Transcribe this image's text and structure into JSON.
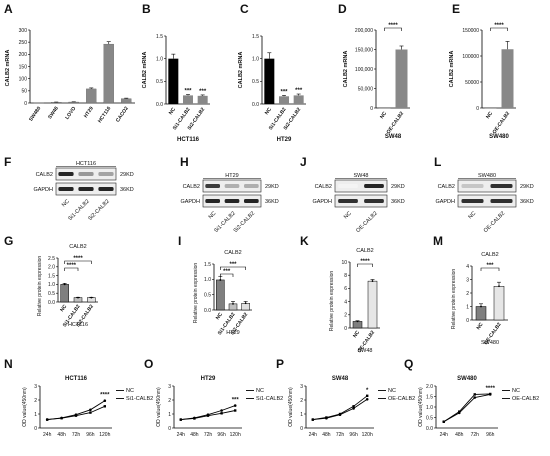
{
  "panels": {
    "A": {
      "letter": "A",
      "ylabel": "CALB2 mRNA",
      "yticks": [
        "0",
        "50",
        "100",
        "150",
        "200",
        "250",
        "300"
      ],
      "ymax": 300,
      "categories": [
        "SW480",
        "SW48",
        "LOVO",
        "HT29",
        "HCT116",
        "CACO2"
      ],
      "values": [
        1,
        3,
        4,
        58,
        242,
        18
      ],
      "errors": [
        0,
        1,
        1,
        4,
        10,
        2
      ],
      "bar_color": "#888888"
    },
    "B": {
      "letter": "B",
      "ylabel": "CALB2 mRNA",
      "yticks": [
        "0.0",
        "0.5",
        "1.0",
        "1.5"
      ],
      "ymax": 1.5,
      "categories": [
        "NC",
        "Si1-CALB2",
        "Si2-CALB2"
      ],
      "values": [
        1.0,
        0.19,
        0.18
      ],
      "errors": [
        0.1,
        0.02,
        0.02
      ],
      "stars": [
        "",
        "***",
        "***"
      ],
      "cell_line": "HCT116",
      "colors": [
        "#000000",
        "#888888",
        "#888888"
      ]
    },
    "C": {
      "letter": "C",
      "ylabel": "CALB2 mRNA",
      "yticks": [
        "0.0",
        "0.5",
        "1.0",
        "1.5"
      ],
      "ymax": 1.5,
      "categories": [
        "NC",
        "Si1-CALB2",
        "Si2-CALB2"
      ],
      "values": [
        1.0,
        0.17,
        0.19
      ],
      "errors": [
        0.13,
        0.02,
        0.03
      ],
      "stars": [
        "",
        "***",
        "***"
      ],
      "cell_line": "HT29",
      "colors": [
        "#000000",
        "#888888",
        "#888888"
      ]
    },
    "D": {
      "letter": "D",
      "ylabel": "CALB2 mRNA",
      "yticks": [
        "0",
        "50,000",
        "100,000",
        "150,000",
        "200,000"
      ],
      "ymax": 200000,
      "categories": [
        "NC",
        "OE-CALB2"
      ],
      "values": [
        1,
        150000
      ],
      "errors": [
        0,
        9000
      ],
      "star": "****",
      "cell_line": "SW48"
    },
    "E": {
      "letter": "E",
      "ylabel": "CALB2 mRNA",
      "yticks": [
        "0",
        "50000",
        "100000",
        "150000"
      ],
      "ymax": 150000,
      "categories": [
        "NC",
        "OE-CALB2"
      ],
      "values": [
        1,
        113000
      ],
      "errors": [
        0,
        15000
      ],
      "star": "****",
      "cell_line": "SW480"
    },
    "F": {
      "letter": "F",
      "title": "HCT116",
      "rows": [
        "CALB2",
        "GAPDH"
      ],
      "sizes": [
        "29KD",
        "36KD"
      ],
      "lanes": [
        "NC",
        "Si1-CALB2",
        "Si2-CALB2"
      ]
    },
    "H": {
      "letter": "H",
      "title": "HT29",
      "rows": [
        "CALB2",
        "GAPDH"
      ],
      "sizes": [
        "29KD",
        "36KD"
      ],
      "lanes": [
        "NC",
        "Si1-CALB2",
        "Si2-CALB2"
      ]
    },
    "J": {
      "letter": "J",
      "title": "SW48",
      "rows": [
        "CALB2",
        "GAPDH"
      ],
      "sizes": [
        "29KD",
        "36KD"
      ],
      "lanes": [
        "NC",
        "OE-CALB2"
      ]
    },
    "L": {
      "letter": "L",
      "title": "SW480",
      "rows": [
        "CALB2",
        "GAPDH"
      ],
      "sizes": [
        "29KD",
        "36KD"
      ],
      "lanes": [
        "NC",
        "OE-CALB2"
      ]
    },
    "G": {
      "letter": "G",
      "title": "CALB2",
      "ylabel": "Relative protein expression",
      "yticks": [
        "0.0",
        "0.5",
        "1.0",
        "1.5",
        "2.0",
        "2.5"
      ],
      "ymax": 2.5,
      "categories": [
        "NC",
        "Si1-CALB2",
        "Si2-CALB2"
      ],
      "values": [
        1.0,
        0.25,
        0.25
      ],
      "errors": [
        0.06,
        0.02,
        0.02
      ],
      "cell_line": "HCT116",
      "stars": [
        "****",
        "****",
        "****"
      ],
      "colors": [
        "#7f7f7f",
        "#bfbfbf",
        "#e0e0e0"
      ]
    },
    "I": {
      "letter": "I",
      "title": "CALB2",
      "ylabel": "Relative protein expression",
      "yticks": [
        "0.0",
        "0.5",
        "1.0",
        "1.5"
      ],
      "ymax": 1.5,
      "categories": [
        "NC",
        "Si1-CALB2",
        "Si2-CALB2"
      ],
      "values": [
        0.98,
        0.2,
        0.22
      ],
      "errors": [
        0.12,
        0.08,
        0.06
      ],
      "cell_line": "HT29",
      "stars": [
        "***",
        "***",
        "***"
      ],
      "colors": [
        "#7f7f7f",
        "#bfbfbf",
        "#e0e0e0"
      ]
    },
    "K": {
      "letter": "K",
      "title": "CALB2",
      "ylabel": "Relative protein expression",
      "yticks": [
        "0",
        "2",
        "4",
        "6",
        "8",
        "10"
      ],
      "ymax": 10,
      "categories": [
        "NC",
        "OE-CALB2"
      ],
      "values": [
        1.0,
        7.1
      ],
      "errors": [
        0.1,
        0.25
      ],
      "cell_line": "SW48",
      "star": "****",
      "colors": [
        "#7f7f7f",
        "#e6e6e6"
      ]
    },
    "M": {
      "letter": "M",
      "title": "CALB2",
      "ylabel": "Relative protein expression",
      "yticks": [
        "0",
        "1",
        "2",
        "3",
        "4"
      ],
      "ymax": 4,
      "categories": [
        "NC",
        "OE-CALB2"
      ],
      "values": [
        1.0,
        2.5
      ],
      "errors": [
        0.2,
        0.3
      ],
      "cell_line": "SW480",
      "star": "***",
      "colors": [
        "#7f7f7f",
        "#e6e6e6"
      ]
    },
    "N": {
      "letter": "N",
      "title": "HCT116",
      "ylabel": "OD value(450nm)",
      "yticks": [
        "0",
        "1",
        "2",
        "3"
      ],
      "ymax": 3,
      "x": [
        "24h",
        "48h",
        "72h",
        "96h",
        "120h"
      ],
      "series": [
        {
          "name": "NC",
          "values": [
            0.6,
            0.72,
            0.95,
            1.3,
            1.95
          ]
        },
        {
          "name": "Si1-CALB2",
          "values": [
            0.6,
            0.7,
            0.88,
            1.1,
            1.55
          ]
        }
      ],
      "star": "****"
    },
    "O": {
      "letter": "O",
      "title": "HT29",
      "ylabel": "OD value(450nm)",
      "yticks": [
        "0",
        "1",
        "2",
        "3"
      ],
      "ymax": 3,
      "x": [
        "24h",
        "48h",
        "72h",
        "96h",
        "120h"
      ],
      "series": [
        {
          "name": "NC",
          "values": [
            0.6,
            0.72,
            0.95,
            1.25,
            1.6
          ]
        },
        {
          "name": "Si1-CALB2",
          "values": [
            0.6,
            0.68,
            0.88,
            1.05,
            1.25
          ]
        }
      ],
      "star": "***"
    },
    "P": {
      "letter": "P",
      "title": "SW48",
      "ylabel": "OD value(450nm)",
      "yticks": [
        "0",
        "1",
        "2",
        "3"
      ],
      "ymax": 3,
      "x": [
        "24h",
        "48h",
        "72h",
        "96h",
        "120h"
      ],
      "series": [
        {
          "name": "NC",
          "values": [
            0.6,
            0.7,
            0.95,
            1.4,
            2.05
          ]
        },
        {
          "name": "OE-CALB2",
          "values": [
            0.6,
            0.75,
            1.0,
            1.55,
            2.3
          ]
        }
      ],
      "star": "*"
    },
    "Q": {
      "letter": "Q",
      "title": "SW480",
      "ylabel": "OD value(450nm)",
      "yticks": [
        "0.0",
        "0.5",
        "1.0",
        "1.5",
        "2.0"
      ],
      "ymax": 2,
      "x": [
        "24h",
        "48h",
        "72h",
        "96h"
      ],
      "series": [
        {
          "name": "NC",
          "values": [
            0.3,
            0.72,
            1.45,
            1.6
          ]
        },
        {
          "name": "OE-CALB2",
          "values": [
            0.3,
            0.78,
            1.6,
            1.62
          ]
        }
      ],
      "star": "****"
    }
  }
}
